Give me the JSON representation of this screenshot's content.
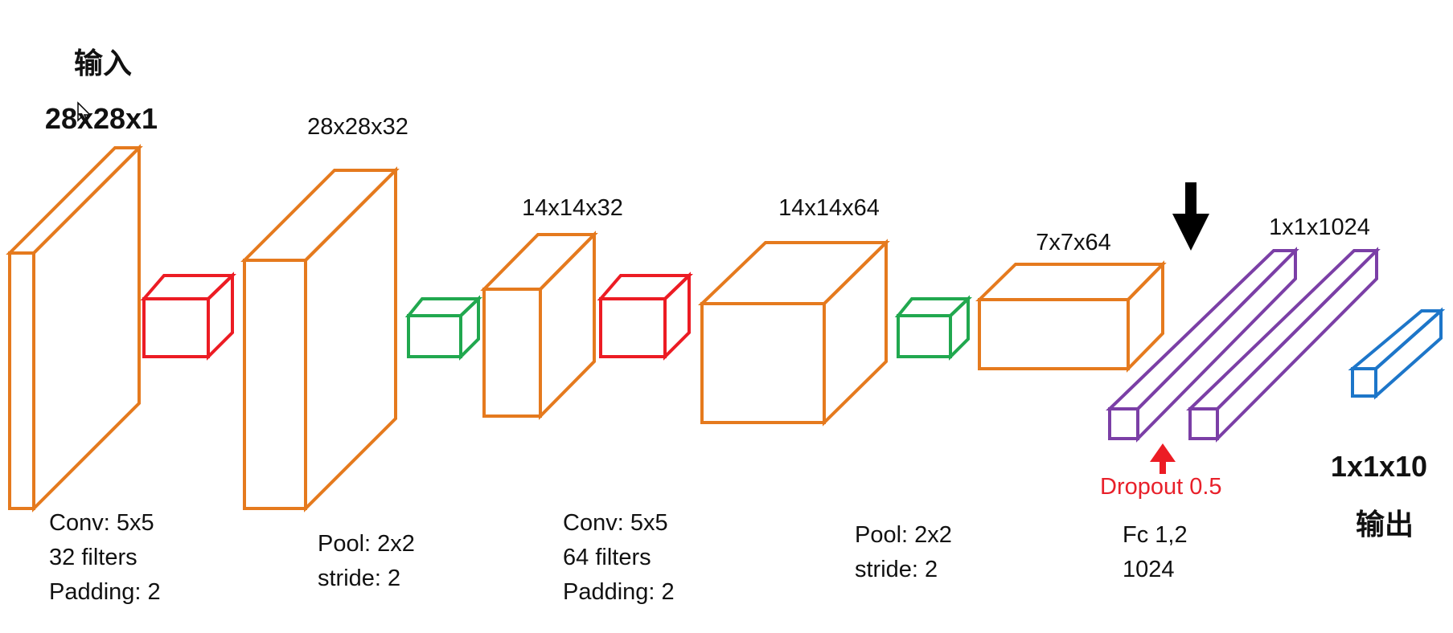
{
  "input": {
    "title": "输入",
    "size": "28x28x1"
  },
  "output": {
    "size": "1x1x10",
    "title": "输出"
  },
  "dims": {
    "conv1_out": "28x28x32",
    "pool1_out": "14x14x32",
    "conv2_out": "14x14x64",
    "pool2_out": "7x7x64",
    "fc_out": "1x1x1024"
  },
  "ops": {
    "conv1": [
      "Conv: 5x5",
      "32 filters",
      "Padding: 2"
    ],
    "pool1": [
      "Pool: 2x2",
      "stride: 2"
    ],
    "conv2": [
      "Conv: 5x5",
      "64 filters",
      "Padding: 2"
    ],
    "pool2": [
      "Pool: 2x2",
      "stride: 2"
    ],
    "fc": [
      "Fc 1,2",
      "1024"
    ]
  },
  "dropout": "Dropout 0.5",
  "colors": {
    "tensor": "#e57a1e",
    "conv_kernel": "#ec1c24",
    "pool_kernel": "#21a84f",
    "fc_layer": "#7b3fa6",
    "output_layer": "#1d76c9",
    "dropout": "#e8202a",
    "arrow": "#000000"
  },
  "icons": [
    "arrow-down-icon",
    "arrow-up-icon",
    "mouse-cursor-icon"
  ]
}
